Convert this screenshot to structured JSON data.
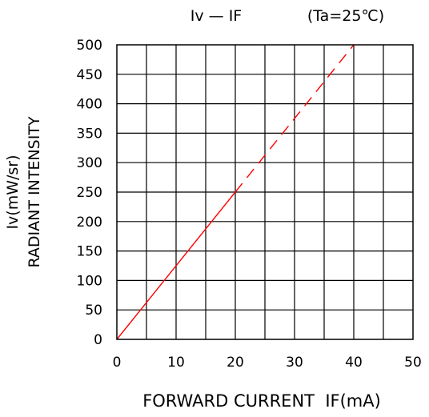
{
  "chart_data": {
    "type": "line",
    "title": "Iv — IF",
    "subtitle": "(Ta=25℃)",
    "xlabel": "FORWARD CURRENT  IF(mA)",
    "ylabel_line1": "Iv(mW/sr)",
    "ylabel_line2": "RADIANT INTENSITY",
    "xlim": [
      0,
      50
    ],
    "ylim": [
      0,
      500
    ],
    "x_ticks": [
      "0",
      "10",
      "20",
      "30",
      "40",
      "50"
    ],
    "y_ticks": [
      "0",
      "50",
      "100",
      "150",
      "200",
      "250",
      "300",
      "350",
      "400",
      "450",
      "500"
    ],
    "x_tick_values": [
      0,
      10,
      20,
      30,
      40,
      50
    ],
    "y_tick_values": [
      0,
      50,
      100,
      150,
      200,
      250,
      300,
      350,
      400,
      450,
      500
    ],
    "x_grid_step": 5,
    "y_grid_step": 50,
    "grid": true,
    "series": [
      {
        "segments": [
          {
            "style": "solid",
            "points": [
              [
                0,
                0
              ],
              [
                20,
                250
              ]
            ]
          },
          {
            "style": "dashed",
            "points": [
              [
                20,
                250
              ],
              [
                40,
                500
              ]
            ]
          }
        ],
        "color": "#ff0000"
      }
    ]
  }
}
